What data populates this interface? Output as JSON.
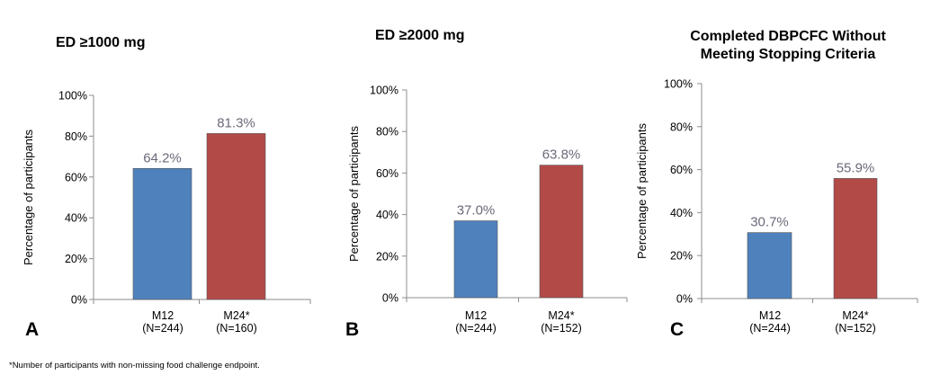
{
  "colors": {
    "blue": "#4F81BD",
    "red": "#B24A48",
    "axis": "#8C8C8C",
    "label_text": "#6A6A7A"
  },
  "chart_data": [
    {
      "type": "bar",
      "panel_letter": "A",
      "title": "ED ≥1000 mg",
      "ylabel": "Percentage of participants",
      "categories": [
        "M12",
        "M24*"
      ],
      "category_sublabels": [
        "(N=244)",
        "(N=160)"
      ],
      "values": [
        64.2,
        81.3
      ],
      "data_labels": [
        "64.2%",
        "81.3%"
      ],
      "bar_colors": [
        "#4F81BD",
        "#B24A48"
      ],
      "ylim": [
        0,
        100
      ],
      "yticks": [
        "0%",
        "20%",
        "40%",
        "60%",
        "80%",
        "100%"
      ],
      "grid": false
    },
    {
      "type": "bar",
      "panel_letter": "B",
      "title": "ED ≥2000 mg",
      "ylabel": "Percentage of participants",
      "categories": [
        "M12",
        "M24*"
      ],
      "category_sublabels": [
        "(N=244)",
        "(N=152)"
      ],
      "values": [
        37.0,
        63.8
      ],
      "data_labels": [
        "37.0%",
        "63.8%"
      ],
      "bar_colors": [
        "#4F81BD",
        "#B24A48"
      ],
      "ylim": [
        0,
        100
      ],
      "yticks": [
        "0%",
        "20%",
        "40%",
        "60%",
        "80%",
        "100%"
      ],
      "grid": false
    },
    {
      "type": "bar",
      "panel_letter": "C",
      "title": [
        "Completed DBPCFC Without",
        "Meeting Stopping Criteria"
      ],
      "ylabel": "Percentage of participants",
      "categories": [
        "M12",
        "M24*"
      ],
      "category_sublabels": [
        "(N=244)",
        "(N=152)"
      ],
      "values": [
        30.7,
        55.9
      ],
      "data_labels": [
        "30.7%",
        "55.9%"
      ],
      "bar_colors": [
        "#4F81BD",
        "#B24A48"
      ],
      "ylim": [
        0,
        100
      ],
      "yticks": [
        "0%",
        "20%",
        "40%",
        "60%",
        "80%",
        "100%"
      ],
      "grid": false
    }
  ],
  "footnote": "*Number of participants with non-missing food challenge endpoint."
}
